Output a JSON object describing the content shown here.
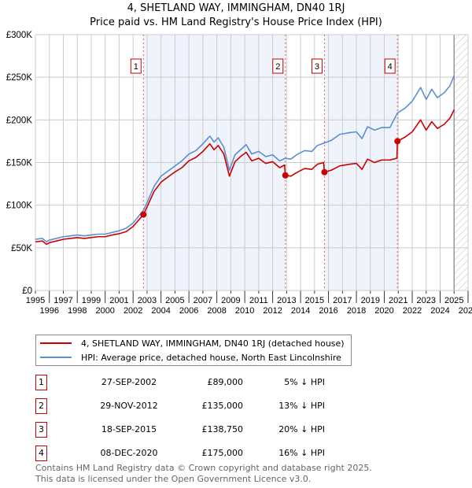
{
  "title_line1": "4, SHETLAND WAY, IMMINGHAM, DN40 1RJ",
  "title_line2": "Price paid vs. HM Land Registry's House Price Index (HPI)",
  "legend": {
    "property": "4, SHETLAND WAY, IMMINGHAM, DN40 1RJ (detached house)",
    "hpi": "HPI: Average price, detached house, North East Lincolnshire"
  },
  "colors": {
    "property": "#cc0000",
    "hpi": "#5b8fd4",
    "shade": "#eef3fc"
  },
  "transactions": [
    {
      "n": "1",
      "date": "27-SEP-2002",
      "price": "£89,000",
      "hpi": "5% ↓ HPI",
      "year": 2002.74,
      "value": 89000
    },
    {
      "n": "2",
      "date": "29-NOV-2012",
      "price": "£135,000",
      "hpi": "13% ↓ HPI",
      "year": 2012.91,
      "value": 135000
    },
    {
      "n": "3",
      "date": "18-SEP-2015",
      "price": "£138,750",
      "hpi": "20% ↓ HPI",
      "year": 2015.71,
      "value": 138750
    },
    {
      "n": "4",
      "date": "08-DEC-2020",
      "price": "£175,000",
      "hpi": "16% ↓ HPI",
      "year": 2020.94,
      "value": 175000
    }
  ],
  "footer_line1": "Contains HM Land Registry data © Crown copyright and database right 2025.",
  "footer_line2": "This data is licensed under the Open Government Licence v3.0.",
  "chart_data": {
    "type": "line",
    "title": "4, SHETLAND WAY, IMMINGHAM, DN40 1RJ — Price paid vs. HM Land Registry's House Price Index (HPI)",
    "xlim": [
      1995,
      2026
    ],
    "ylim": [
      0,
      300000
    ],
    "xticks": [
      "1995",
      "1996",
      "1997",
      "1998",
      "1999",
      "2000",
      "2001",
      "2002",
      "2003",
      "2004",
      "2005",
      "2006",
      "2007",
      "2008",
      "2009",
      "2010",
      "2011",
      "2012",
      "2013",
      "2014",
      "2015",
      "2016",
      "2017",
      "2018",
      "2019",
      "2020",
      "2021",
      "2022",
      "2023",
      "2024",
      "2025",
      "2026"
    ],
    "yticks": [
      {
        "v": 0,
        "label": "£0"
      },
      {
        "v": 50000,
        "label": "£50K"
      },
      {
        "v": 100000,
        "label": "£100K"
      },
      {
        "v": 150000,
        "label": "£150K"
      },
      {
        "v": 200000,
        "label": "£200K"
      },
      {
        "v": 250000,
        "label": "£250K"
      },
      {
        "v": 300000,
        "label": "£300K"
      }
    ],
    "grid": true,
    "legend_position": "bottom",
    "forecast_hatch_from": 2025.0,
    "series": [
      {
        "name": "HPI: Average price, detached house, North East Lincolnshire",
        "x": [
          1995,
          1995.5,
          1995.8,
          1996,
          1996.5,
          1997,
          1997.5,
          1998,
          1998.5,
          1999,
          1999.5,
          2000,
          2000.5,
          2001,
          2001.5,
          2002,
          2002.74,
          2003,
          2003.5,
          2004,
          2004.5,
          2005,
          2005.5,
          2006,
          2006.5,
          2007,
          2007.5,
          2007.8,
          2008.1,
          2008.5,
          2008.9,
          2009.3,
          2009.7,
          2010.1,
          2010.5,
          2011,
          2011.5,
          2012,
          2012.5,
          2012.91,
          2013.3,
          2013.8,
          2014.3,
          2014.8,
          2015.2,
          2015.71,
          2016.2,
          2016.8,
          2017.5,
          2018,
          2018.4,
          2018.8,
          2019.3,
          2019.8,
          2020.4,
          2020.94,
          2021.5,
          2022,
          2022.6,
          2023,
          2023.4,
          2023.8,
          2024.3,
          2024.7,
          2025
        ],
        "y": [
          60,
          61,
          57,
          59,
          61,
          63,
          64,
          65,
          64,
          65,
          66,
          66,
          68,
          70,
          73,
          79,
          94,
          103,
          122,
          134,
          140,
          146,
          152,
          160,
          164,
          172,
          181,
          174,
          179,
          168,
          141,
          159,
          165,
          171,
          160,
          163,
          157,
          159,
          152,
          155,
          154,
          160,
          164,
          163,
          170,
          173,
          176,
          183,
          185,
          186,
          178,
          192,
          188,
          191,
          191,
          208,
          214,
          222,
          238,
          224,
          236,
          226,
          232,
          240,
          252
        ],
        "unit": "thousand GBP"
      },
      {
        "name": "4, SHETLAND WAY, IMMINGHAM, DN40 1RJ (detached house)",
        "x": [
          1995,
          1995.5,
          1995.8,
          1996,
          1996.5,
          1997,
          1997.5,
          1998,
          1998.5,
          1999,
          1999.5,
          2000,
          2000.5,
          2001,
          2001.5,
          2002,
          2002.74,
          2003,
          2003.5,
          2004,
          2004.5,
          2005,
          2005.5,
          2006,
          2006.5,
          2007,
          2007.5,
          2007.8,
          2008.1,
          2008.5,
          2008.9,
          2009.3,
          2009.7,
          2010.1,
          2010.5,
          2011,
          2011.5,
          2012,
          2012.5,
          2012.85,
          2012.91,
          2013.3,
          2013.8,
          2014.3,
          2014.8,
          2015.2,
          2015.65,
          2015.71,
          2016.2,
          2016.8,
          2017.5,
          2018,
          2018.4,
          2018.8,
          2019.3,
          2019.8,
          2020.4,
          2020.9,
          2020.94,
          2021.5,
          2022,
          2022.6,
          2023,
          2023.4,
          2023.8,
          2024.3,
          2024.7,
          2025
        ],
        "y": [
          57,
          58,
          54,
          56,
          58,
          60,
          61,
          62,
          61,
          62,
          63,
          63,
          65,
          66.5,
          69,
          75,
          89,
          98,
          116,
          127,
          133,
          139,
          144,
          152,
          156,
          163,
          172,
          165,
          170,
          160,
          134,
          151,
          157,
          162,
          152,
          155,
          149,
          151,
          144,
          147,
          135,
          134,
          139,
          143,
          142,
          148,
          150,
          138.75,
          141,
          146,
          148,
          149,
          142,
          154,
          150,
          153,
          153,
          155,
          175,
          180,
          186,
          200,
          188,
          198,
          190,
          195,
          202,
          212
        ],
        "unit": "thousand GBP"
      }
    ]
  }
}
